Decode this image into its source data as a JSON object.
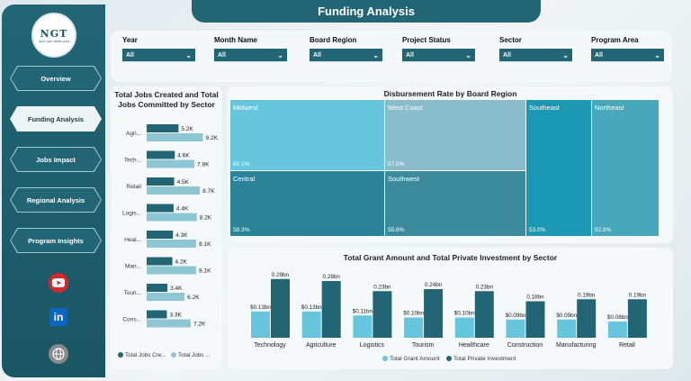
{
  "logo": {
    "text": "NGT",
    "tagline": "NEXT GEN TEMPLATES"
  },
  "header": {
    "title": "Funding Analysis"
  },
  "nav": [
    {
      "label": "Overview",
      "active": false
    },
    {
      "label": "Funding Analysis",
      "active": true
    },
    {
      "label": "Jobs Impact",
      "active": false
    },
    {
      "label": "Regional Analysis",
      "active": false
    },
    {
      "label": "Program Insights",
      "active": false
    }
  ],
  "social": {
    "youtube": "YouTube",
    "linkedin": "in"
  },
  "filters": [
    {
      "label": "Year",
      "value": "All"
    },
    {
      "label": "Month Name",
      "value": "All"
    },
    {
      "label": "Board Region",
      "value": "All"
    },
    {
      "label": "Project Status",
      "value": "All"
    },
    {
      "label": "Sector",
      "value": "All"
    },
    {
      "label": "Program Area",
      "value": "All"
    }
  ],
  "jobs_chart": {
    "title_line1": "Total Jobs Created and Total",
    "title_line2": "Jobs Committed by Sector",
    "legend": [
      "Total Jobs Cre...",
      "Total Jobs ..."
    ],
    "colors": {
      "created": "#226676",
      "committed": "#8fc6d4"
    }
  },
  "treemap": {
    "title": "Disbursement Rate by Board Region",
    "cells": [
      {
        "name": "Midwest",
        "pct": "65.1%",
        "color": "#66c6dd"
      },
      {
        "name": "West Coast",
        "pct": "57.5%",
        "color": "#89bdcc"
      },
      {
        "name": "Southeast",
        "pct": "53.0%",
        "color": "#1a98b4"
      },
      {
        "name": "Northeast",
        "pct": "52.8%",
        "color": "#48a8bb"
      },
      {
        "name": "Central",
        "pct": "58.3%",
        "color": "#2b8397"
      },
      {
        "name": "Southwest",
        "pct": "55.6%",
        "color": "#3b8b9d"
      }
    ]
  },
  "grant_chart": {
    "title": "Total Grant Amount and Total Private Investment by Sector",
    "legend": [
      "Total Grant Amount",
      "Total Private Investment"
    ],
    "colors": {
      "grant": "#66c6dd",
      "private": "#226676"
    }
  },
  "chart_data": [
    {
      "type": "bar",
      "orientation": "horizontal",
      "title": "Total Jobs Created and Total Jobs Committed by Sector",
      "categories": [
        "Agri...",
        "Tech...",
        "Retail",
        "Logis...",
        "Heal...",
        "Man...",
        "Touri...",
        "Cons..."
      ],
      "series": [
        {
          "name": "Total Jobs Cre...",
          "values": [
            5.2,
            4.6,
            4.5,
            4.4,
            4.3,
            4.2,
            3.4,
            3.3
          ],
          "labels": [
            "5.2K",
            "4.6K",
            "4.5K",
            "4.4K",
            "4.3K",
            "4.2K",
            "3.4K",
            "3.3K"
          ]
        },
        {
          "name": "Total Jobs ...",
          "values": [
            9.2,
            7.8,
            8.7,
            8.2,
            8.1,
            8.1,
            6.2,
            7.2
          ],
          "labels": [
            "9.2K",
            "7.8K",
            "8.7K",
            "8.2K",
            "8.1K",
            "8.1K",
            "6.2K",
            "7.2K"
          ]
        }
      ]
    },
    {
      "type": "heatmap",
      "title": "Disbursement Rate by Board Region",
      "categories": [
        "Midwest",
        "West Coast",
        "Southeast",
        "Northeast",
        "Central",
        "Southwest"
      ],
      "values": [
        65.1,
        57.5,
        53.0,
        52.8,
        58.3,
        55.6
      ]
    },
    {
      "type": "bar",
      "title": "Total Grant Amount and Total Private Investment by Sector",
      "categories": [
        "Technology",
        "Agriculture",
        "Logistics",
        "Tourism",
        "Healthcare",
        "Construction",
        "Manufacturing",
        "Retail"
      ],
      "series": [
        {
          "name": "Total Grant Amount",
          "values": [
            0.13,
            0.13,
            0.11,
            0.1,
            0.1,
            0.09,
            0.09,
            0.08
          ],
          "labels": [
            "$0.13bn",
            "$0.13bn",
            "$0.11bn",
            "$0.10bn",
            "$0.10bn",
            "$0.09bn",
            "$0.09bn",
            "$0.08bn"
          ]
        },
        {
          "name": "Total Private Investment",
          "values": [
            0.29,
            0.28,
            0.23,
            0.24,
            0.23,
            0.18,
            0.19,
            0.19
          ],
          "labels": [
            "0.29bn",
            "0.28bn",
            "0.23bn",
            "0.24bn",
            "0.23bn",
            "0.18bn",
            "0.19bn",
            "0.19bn"
          ]
        }
      ]
    }
  ]
}
